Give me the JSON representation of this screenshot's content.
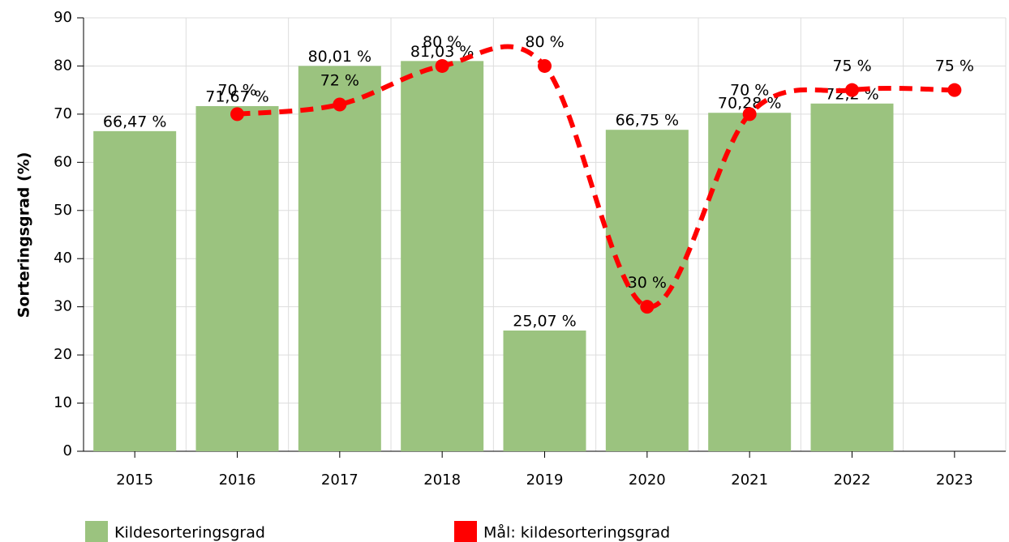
{
  "chart_data": {
    "type": "bar",
    "y_label": "Sorteringsgrad (%)",
    "categories": [
      "2015",
      "2016",
      "2017",
      "2018",
      "2019",
      "2020",
      "2021",
      "2022",
      "2023"
    ],
    "series": [
      {
        "name": "Kildesorteringsgrad",
        "type": "bar",
        "color": "#9bc37f",
        "values": [
          66.47,
          71.67,
          80.01,
          81.03,
          25.07,
          66.75,
          70.28,
          72.2,
          null
        ],
        "value_labels": [
          "66,47 %",
          "71,67 %",
          "80,01 %",
          "81,03 %",
          "25,07 %",
          "66,75 %",
          "70,28 %",
          "72,2 %",
          null
        ]
      },
      {
        "name": "Mål: kildesorteringsgrad",
        "type": "line",
        "color": "#ff0000",
        "values": [
          null,
          70,
          72,
          80,
          80,
          30,
          70,
          75,
          75
        ],
        "value_labels": [
          null,
          "70 %",
          "72 %",
          "80 %",
          "80 %",
          "30 %",
          "70 %",
          "75 %",
          "75 %"
        ]
      }
    ],
    "ylim": [
      0,
      90
    ],
    "yticks": [
      0,
      10,
      20,
      30,
      40,
      50,
      60,
      70,
      80,
      90
    ],
    "grid": true
  }
}
